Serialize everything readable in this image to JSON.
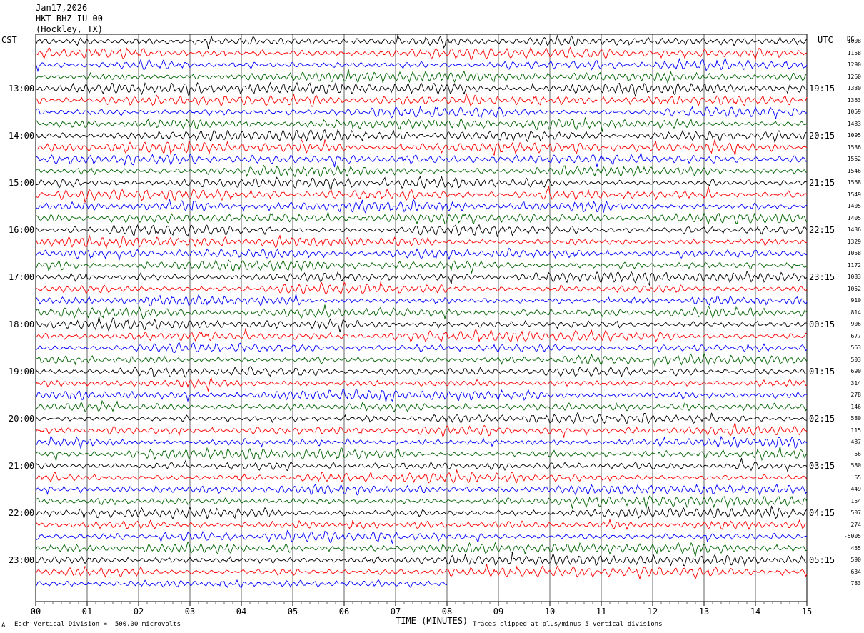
{
  "header": {
    "date": "Jan17,2026",
    "station": "HKT BHZ IU 00",
    "location": "(Hockley, TX)"
  },
  "left_zone_label": "CST",
  "right_zone_label": "UTC",
  "right_col_label": "DC",
  "footer": {
    "scale_note": "Each Vertical Division =  500.00 microvolts",
    "xlabel": "TIME (MINUTES)",
    "clip_note": "Traces clipped at plus/minus 5 vertical divisions",
    "corner_mark": "A"
  },
  "chart_data": {
    "type": "line",
    "title": "HKT BHZ IU 00 (Hockley, TX)",
    "date": "Jan17,2026",
    "xlabel": "TIME (MINUTES)",
    "xlim": [
      0,
      15
    ],
    "x_ticks": [
      "00",
      "01",
      "02",
      "03",
      "04",
      "05",
      "06",
      "07",
      "08",
      "09",
      "10",
      "11",
      "12",
      "13",
      "14",
      "15"
    ],
    "trace_count": 47,
    "minutes_per_trace": 15,
    "last_trace_minutes": 8,
    "trace_colors": [
      "#000000",
      "#ff0000",
      "#0000ff",
      "#006400"
    ],
    "grid": true,
    "left_hour_labels": [
      "13:00",
      "14:00",
      "15:00",
      "16:00",
      "17:00",
      "18:00",
      "19:00",
      "20:00",
      "21:00",
      "22:00",
      "23:00"
    ],
    "right_hour_labels": [
      "19:15",
      "20:15",
      "21:15",
      "22:15",
      "23:15",
      "00:15",
      "01:15",
      "02:15",
      "03:15",
      "04:15",
      "05:15"
    ],
    "dc_offsets": [
      "1008",
      "1158",
      "1290",
      "1260",
      "1330",
      "1363",
      "1059",
      "1483",
      "1095",
      "1536",
      "1562",
      "1546",
      "1568",
      "1549",
      "1405",
      "1405",
      "1436",
      "1329",
      "1058",
      "1172",
      "1083",
      "1052",
      "910",
      "814",
      "906",
      "677",
      "563",
      "503",
      "690",
      "314",
      "278",
      "146",
      "580",
      "115",
      "487",
      "56",
      "580",
      "65",
      "449",
      "154",
      "507",
      "274",
      "-5005",
      "455",
      "590",
      "634",
      "783"
    ]
  }
}
